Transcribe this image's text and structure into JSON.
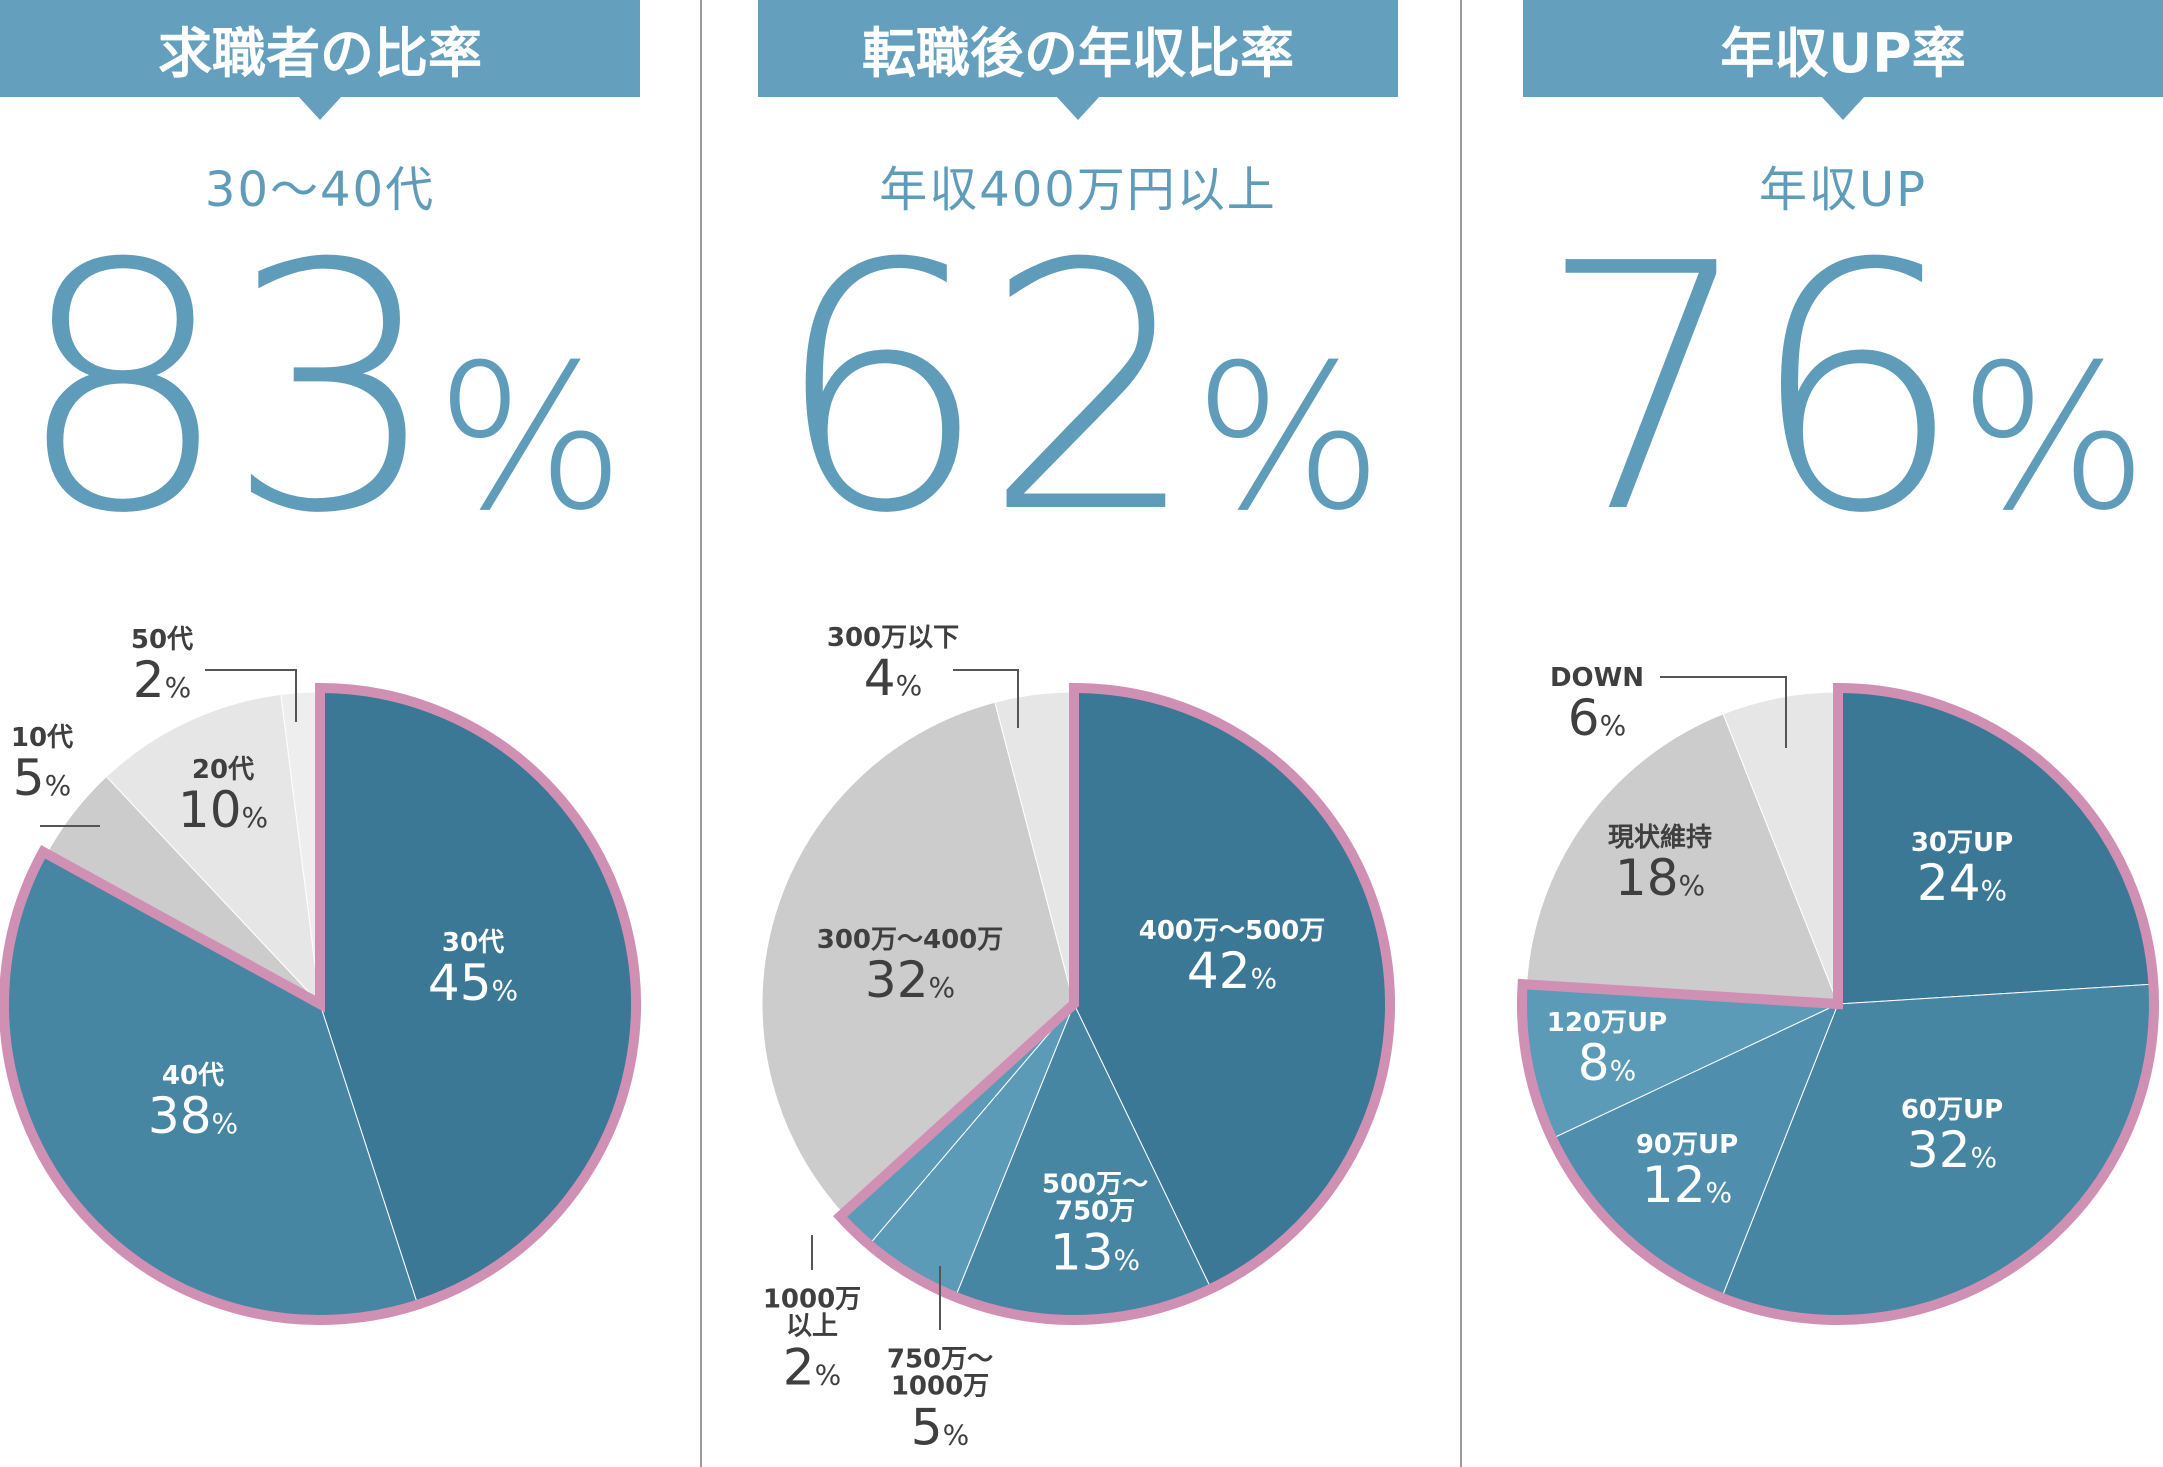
{
  "colors": {
    "accent": "#64a0bd",
    "number": "#5e9cba",
    "highlight_border": "#d090b4",
    "seg_dark": "#3a7895",
    "seg_mid": "#4786a3",
    "seg_light": "#5b9bb8",
    "seg_grey": "#cccccc",
    "seg_grey_light": "#e6e6e6",
    "seg_grey_lighter": "#eeeeee"
  },
  "panels": [
    {
      "title": "求職者の比率",
      "subtitle": "30〜40代",
      "big_number": "83",
      "percent_sign": "%"
    },
    {
      "title": "転職後の年収比率",
      "subtitle": "年収400万円以上",
      "big_number": "62",
      "percent_sign": "%"
    },
    {
      "title": "年収UP率",
      "subtitle": "年収UP",
      "big_number": "76",
      "percent_sign": "%"
    }
  ],
  "chart_data": [
    {
      "type": "pie",
      "title": "求職者の比率",
      "categories": [
        "30代",
        "40代",
        "10代",
        "20代",
        "50代"
      ],
      "values": [
        45,
        38,
        5,
        10,
        2
      ],
      "value_suffix": "%",
      "highlighted": [
        "30代",
        "40代"
      ]
    },
    {
      "type": "pie",
      "title": "転職後の年収比率",
      "categories": [
        "400万〜500万",
        "500万〜750万",
        "750万〜1000万",
        "1000万以上",
        "300万〜400万",
        "300万以下"
      ],
      "values": [
        42,
        13,
        5,
        2,
        32,
        4
      ],
      "value_suffix": "%",
      "highlighted": [
        "400万〜500万",
        "500万〜750万",
        "750万〜1000万",
        "1000万以上"
      ]
    },
    {
      "type": "pie",
      "title": "年収UP率",
      "categories": [
        "30万UP",
        "60万UP",
        "90万UP",
        "120万UP",
        "現状維持",
        "DOWN"
      ],
      "values": [
        24,
        32,
        12,
        8,
        18,
        6
      ],
      "value_suffix": "%",
      "highlighted": [
        "30万UP",
        "60万UP",
        "90万UP",
        "120万UP"
      ]
    }
  ],
  "labels": {
    "p1": [
      {
        "name": "30代",
        "value": "45",
        "pct": "%"
      },
      {
        "name": "40代",
        "value": "38",
        "pct": "%"
      },
      {
        "name": "20代",
        "value": "10",
        "pct": "%"
      },
      {
        "name": "10代",
        "value": "5",
        "pct": "%"
      },
      {
        "name": "50代",
        "value": "2",
        "pct": "%"
      }
    ],
    "p2": [
      {
        "name": "400万〜500万",
        "value": "42",
        "pct": "%"
      },
      {
        "name": "500万〜",
        "name2": "750万",
        "value": "13",
        "pct": "%"
      },
      {
        "name": "300万〜400万",
        "value": "32",
        "pct": "%"
      },
      {
        "name": "300万以下",
        "value": "4",
        "pct": "%"
      },
      {
        "name": "1000万",
        "name2": "以上",
        "value": "2",
        "pct": "%"
      },
      {
        "name": "750万〜",
        "name2": "1000万",
        "value": "5",
        "pct": "%"
      }
    ],
    "p3": [
      {
        "name": "30万UP",
        "value": "24",
        "pct": "%"
      },
      {
        "name": "60万UP",
        "value": "32",
        "pct": "%"
      },
      {
        "name": "90万UP",
        "value": "12",
        "pct": "%"
      },
      {
        "name": "120万UP",
        "value": "8",
        "pct": "%"
      },
      {
        "name": "現状維持",
        "value": "18",
        "pct": "%"
      },
      {
        "name": "DOWN",
        "value": "6",
        "pct": "%"
      }
    ]
  }
}
